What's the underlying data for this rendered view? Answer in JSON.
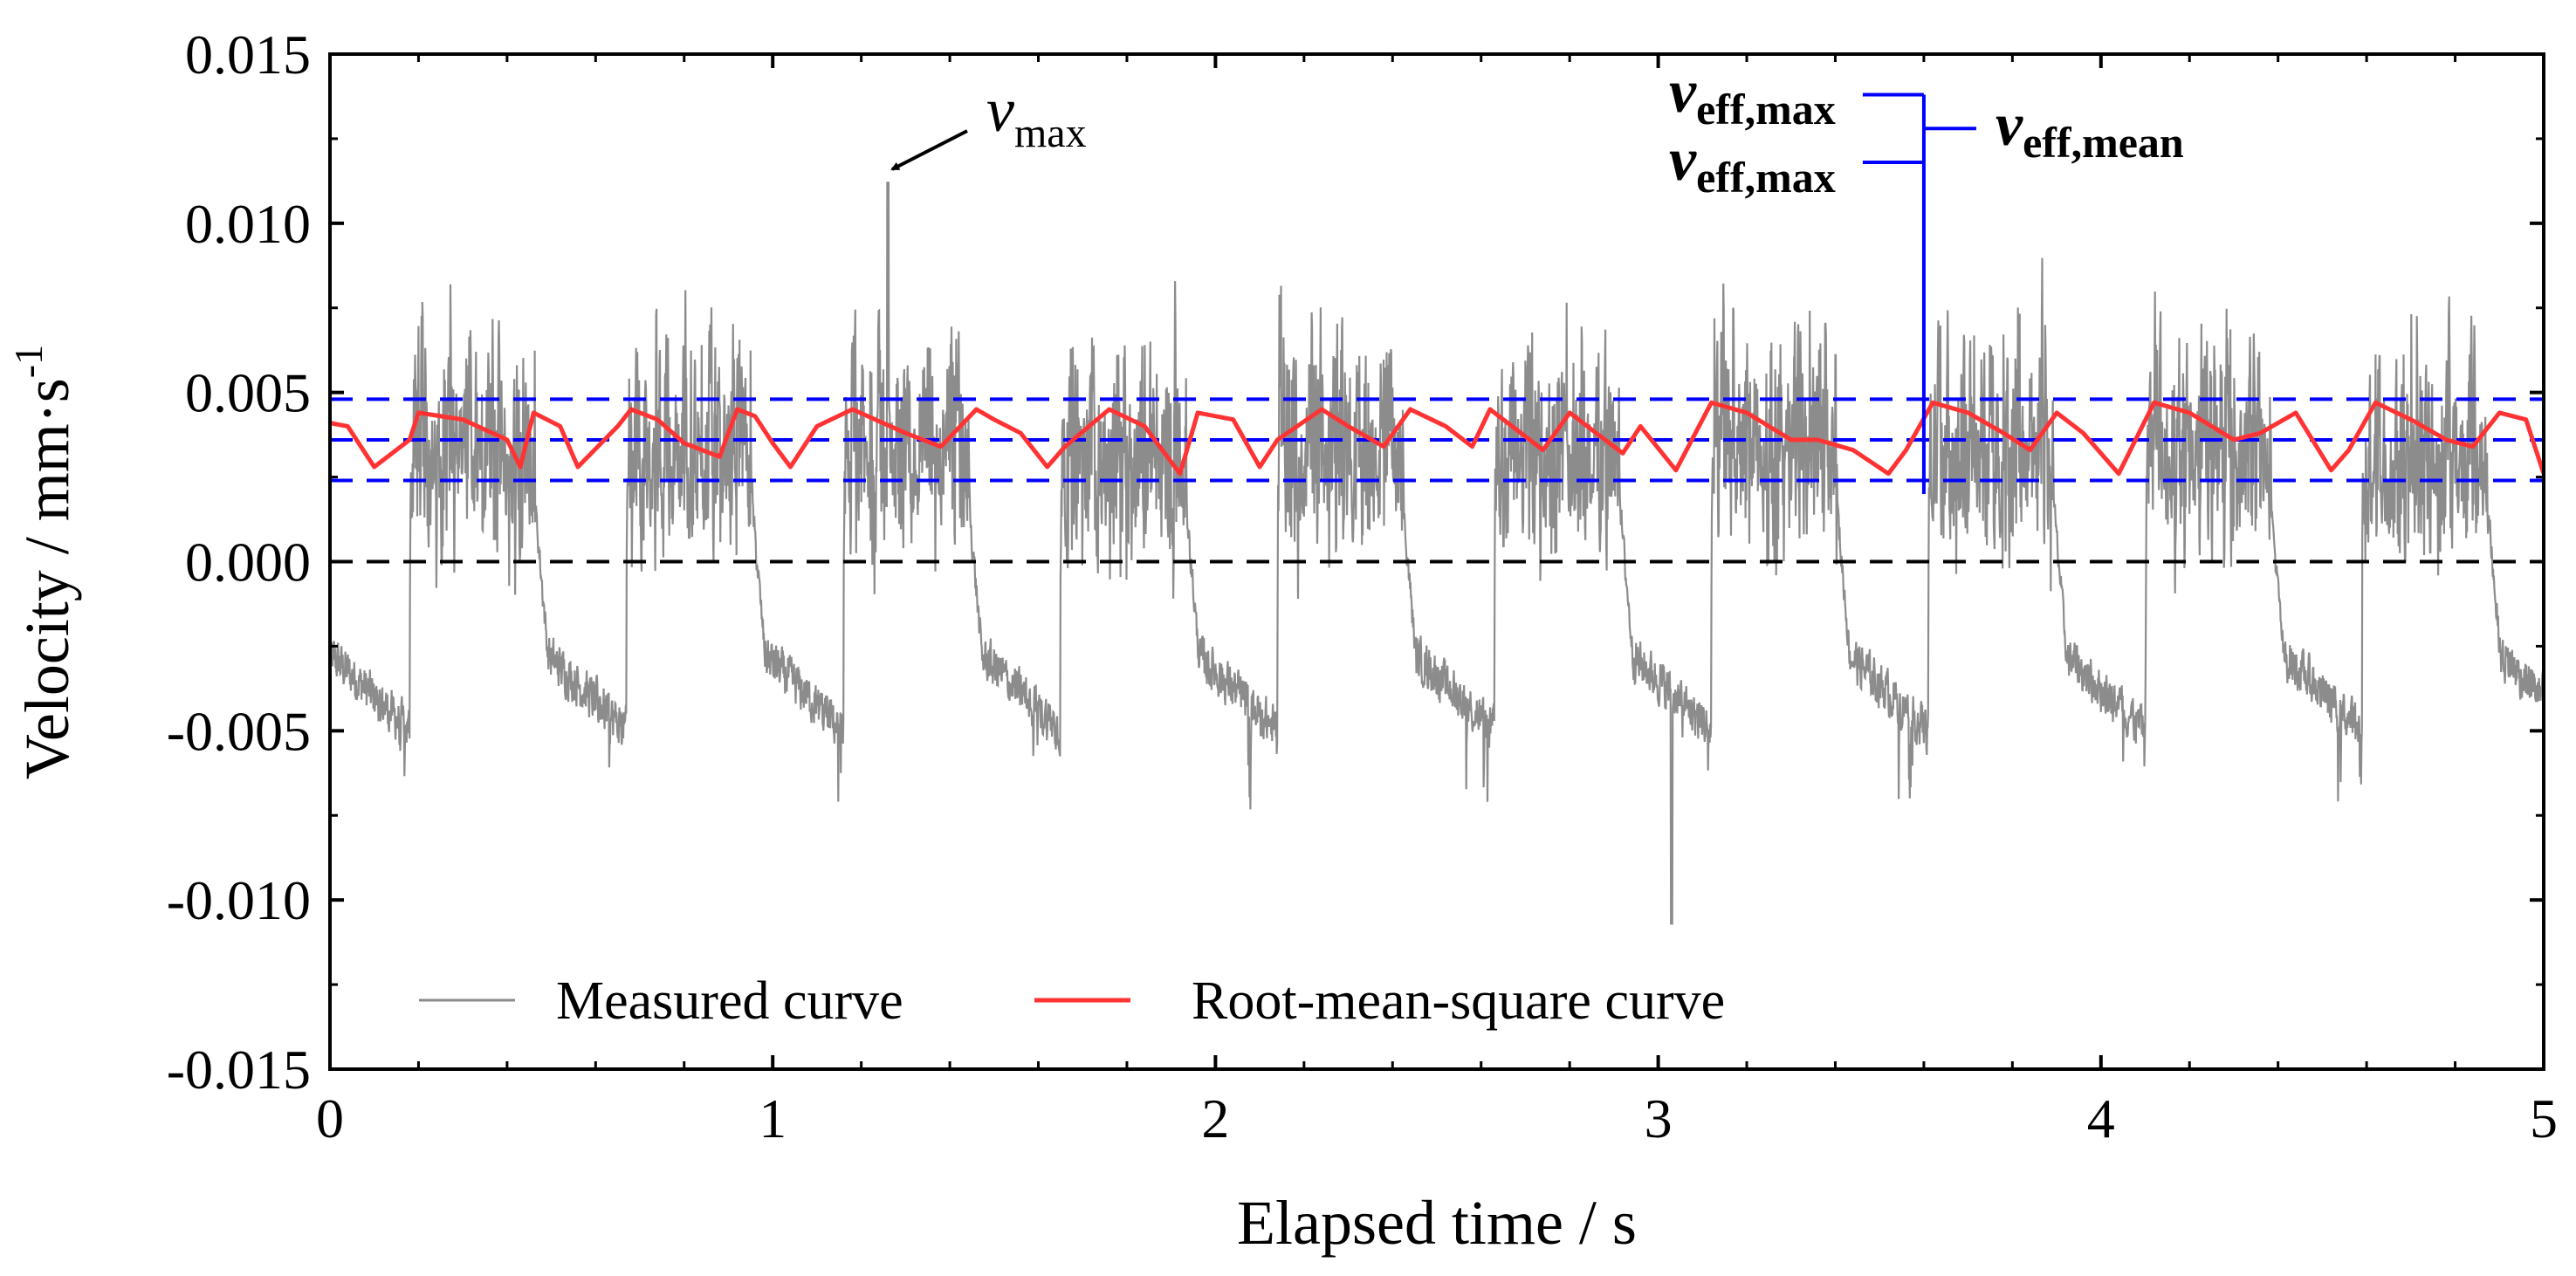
{
  "chart_data": {
    "type": "line",
    "title": "",
    "xlabel": "Elapsed time / s",
    "ylabel_main": "Velocity / mm·s",
    "ylabel_sup": "-1",
    "xlim": [
      0,
      5
    ],
    "ylim": [
      -0.015,
      0.015
    ],
    "x_ticks": [
      0,
      1,
      2,
      3,
      4,
      5
    ],
    "x_tick_labels": [
      "0",
      "1",
      "2",
      "3",
      "4",
      "5"
    ],
    "y_ticks": [
      -0.015,
      -0.01,
      -0.005,
      0.0,
      0.005,
      0.01,
      0.015
    ],
    "y_tick_labels": [
      "-0.015",
      "-0.010",
      "-0.005",
      "0.000",
      "0.005",
      "0.010",
      "0.015"
    ],
    "legend": {
      "placement": "bottom-left",
      "entries": [
        {
          "label": "Measured curve",
          "color": "#8c8c8c"
        },
        {
          "label": "Root-mean-square curve",
          "color": "#ff3333"
        }
      ]
    },
    "series": [
      {
        "name": "Measured curve",
        "color": "#8c8c8c",
        "cycle_period_s": 0.49,
        "cycle_count": 10,
        "peak_max": 0.0112,
        "peak_max_time": 1.26,
        "trough_min": -0.0107,
        "trough_min_time": 3.03
      },
      {
        "name": "Root-mean-square curve",
        "color": "#ff3333",
        "x": [
          0,
          0.04,
          0.1,
          0.18,
          0.2,
          0.3,
          0.4,
          0.43,
          0.46,
          0.52,
          0.56,
          0.65,
          0.68,
          0.74,
          0.8,
          0.88,
          0.92,
          0.96,
          1.0,
          1.04,
          1.1,
          1.18,
          1.3,
          1.38,
          1.46,
          1.5,
          1.56,
          1.62,
          1.66,
          1.76,
          1.84,
          1.92,
          1.96,
          2.04,
          2.1,
          2.14,
          2.24,
          2.3,
          2.38,
          2.44,
          2.52,
          2.58,
          2.62,
          2.74,
          2.8,
          2.86,
          2.92,
          2.96,
          3.04,
          3.12,
          3.2,
          3.3,
          3.36,
          3.44,
          3.52,
          3.56,
          3.62,
          3.7,
          3.78,
          3.84,
          3.9,
          3.96,
          4.04,
          4.12,
          4.2,
          4.3,
          4.36,
          4.44,
          4.52,
          4.56,
          4.62,
          4.7,
          4.78,
          4.84,
          4.9,
          4.96,
          5.0
        ],
        "y": [
          0.0041,
          0.004,
          0.0028,
          0.0036,
          0.0044,
          0.0042,
          0.0036,
          0.0028,
          0.0044,
          0.004,
          0.0028,
          0.004,
          0.0045,
          0.0042,
          0.0035,
          0.0031,
          0.0045,
          0.0043,
          0.0035,
          0.0028,
          0.004,
          0.0045,
          0.0038,
          0.0034,
          0.0045,
          0.0042,
          0.0038,
          0.0028,
          0.0034,
          0.0045,
          0.004,
          0.0026,
          0.0044,
          0.0042,
          0.0028,
          0.0036,
          0.0045,
          0.004,
          0.0034,
          0.0045,
          0.004,
          0.0034,
          0.0045,
          0.0033,
          0.0044,
          0.0038,
          0.0032,
          0.004,
          0.0027,
          0.0047,
          0.0044,
          0.0036,
          0.0036,
          0.0033,
          0.0026,
          0.0033,
          0.0047,
          0.0044,
          0.0038,
          0.0033,
          0.0044,
          0.0038,
          0.0026,
          0.0047,
          0.0044,
          0.0036,
          0.0038,
          0.0044,
          0.0027,
          0.0033,
          0.0047,
          0.0042,
          0.0036,
          0.0034,
          0.0044,
          0.0042,
          0.0026
        ]
      }
    ],
    "reference_lines": [
      {
        "name": "zero-line",
        "y": 0.0,
        "color": "#000000",
        "style": "dashed"
      },
      {
        "name": "v-eff-max-line",
        "y": 0.0048,
        "color": "#0000ff",
        "style": "dashed"
      },
      {
        "name": "v-eff-mean-line",
        "y": 0.0036,
        "color": "#0000ff",
        "style": "dashed"
      },
      {
        "name": "v-eff-min-line",
        "y": 0.0024,
        "color": "#0000ff",
        "style": "dashed"
      }
    ],
    "annotations": {
      "v_max": {
        "base": "v",
        "sub": "max"
      },
      "v_eff_upper": {
        "base": "v",
        "sub": "eff,max"
      },
      "v_eff_lower": {
        "base": "v",
        "sub": "eff,max"
      },
      "v_eff_mean": {
        "base": "v",
        "sub": "eff,mean"
      }
    },
    "bracket": {
      "x": 3.6,
      "y_top": 0.0138,
      "y_bottom": 0.002,
      "y_upper_tick": 0.0138,
      "y_lower_tick": 0.0118,
      "y_mean_tick": 0.0128
    }
  }
}
